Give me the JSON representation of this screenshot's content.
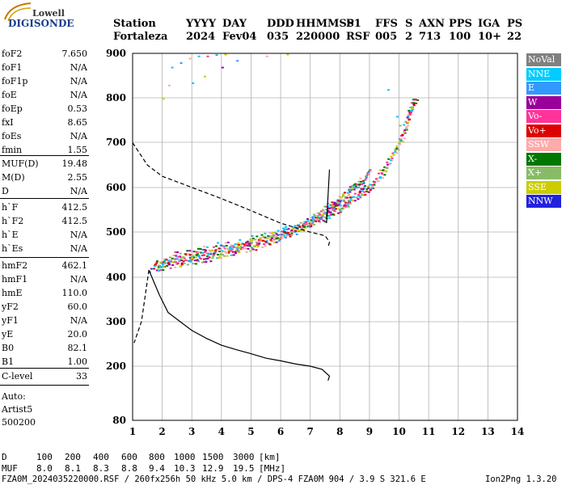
{
  "logo": {
    "line1": "Lowell",
    "line2": "DIGISONDE"
  },
  "header": {
    "labels": [
      "Station",
      "YYYY",
      "DAY",
      "DDD",
      "HHMMSS",
      "P1",
      "FFS",
      "S",
      "AXN",
      "PPS",
      "IGA",
      "PS"
    ],
    "values": [
      "Fortaleza",
      "2024",
      "Fev04",
      "035",
      "220000",
      "RSF",
      "005",
      "2",
      "713",
      "100",
      "10+",
      "22"
    ]
  },
  "params_group1": [
    {
      "k": "foF2",
      "v": "7.650"
    },
    {
      "k": "foF1",
      "v": "N/A"
    },
    {
      "k": "foF1p",
      "v": "N/A"
    },
    {
      "k": "foE",
      "v": "N/A"
    },
    {
      "k": "foEp",
      "v": "0.53"
    },
    {
      "k": "fxI",
      "v": "8.65"
    },
    {
      "k": "foEs",
      "v": "N/A"
    },
    {
      "k": "fmin",
      "v": "1.55"
    }
  ],
  "params_group2": [
    {
      "k": "MUF(D)",
      "v": "19.48"
    },
    {
      "k": "M(D)",
      "v": "2.55"
    },
    {
      "k": "D",
      "v": "N/A"
    }
  ],
  "params_group3": [
    {
      "k": "h`F",
      "v": "412.5"
    },
    {
      "k": "h`F2",
      "v": "412.5"
    },
    {
      "k": "h`E",
      "v": "N/A"
    },
    {
      "k": "h`Es",
      "v": "N/A"
    }
  ],
  "params_group4": [
    {
      "k": "hmF2",
      "v": "462.1"
    },
    {
      "k": "hmF1",
      "v": "N/A"
    },
    {
      "k": "hmE",
      "v": "110.0"
    },
    {
      "k": "yF2",
      "v": "60.0"
    },
    {
      "k": "yF1",
      "v": "N/A"
    },
    {
      "k": "yE",
      "v": "20.0"
    },
    {
      "k": "B0",
      "v": "82.1"
    },
    {
      "k": "B1",
      "v": "1.00"
    }
  ],
  "clevel": {
    "k": "C-level",
    "v": "33"
  },
  "auto": {
    "line1": "Auto:",
    "line2": "Artist5",
    "line3": "500200"
  },
  "legend": [
    {
      "label": "NoVal",
      "color": "#808080"
    },
    {
      "label": "NNE",
      "color": "#00ccff"
    },
    {
      "label": "E",
      "color": "#3399ff"
    },
    {
      "label": "W",
      "color": "#990099"
    },
    {
      "label": "Vo-",
      "color": "#ff3399"
    },
    {
      "label": "Vo+",
      "color": "#dd0000"
    },
    {
      "label": "SSW",
      "color": "#ffaaaa"
    },
    {
      "label": "X-",
      "color": "#007700"
    },
    {
      "label": "X+",
      "color": "#88bb66"
    },
    {
      "label": "SSE",
      "color": "#cccc00"
    },
    {
      "label": "NNW",
      "color": "#2222dd"
    }
  ],
  "footer": {
    "row1_label": "D",
    "row1_values": [
      "100",
      "200",
      "400",
      "600",
      "800",
      "1000",
      "1500",
      "3000",
      "[km]"
    ],
    "row2_label": "MUF",
    "row2_values": [
      "8.0",
      "8.1",
      "8.3",
      "8.8",
      "9.4",
      "10.3",
      "12.9",
      "19.5",
      "[MHz]"
    ],
    "info_line": "FZA0M_2024035220000.RSF / 260fx256h 50 kHz 5.0 km / DPS-4 FZA0M 904 / 3.9 S 321.6 E",
    "version": "Ion2Png 1.3.20"
  },
  "chart_data": {
    "type": "scatter",
    "xlim": [
      1,
      14
    ],
    "ylim": [
      80,
      900
    ],
    "x_ticks": [
      1,
      2,
      3,
      4,
      5,
      6,
      7,
      8,
      9,
      10,
      11,
      12,
      13,
      14
    ],
    "y_ticks": [
      80,
      200,
      300,
      400,
      500,
      600,
      700,
      800,
      900
    ],
    "grid": true,
    "series": [
      {
        "name": "F-trace lower",
        "points": [
          [
            1.6,
            420
          ],
          [
            2,
            425
          ],
          [
            2.5,
            432
          ],
          [
            3,
            438
          ],
          [
            3.5,
            444
          ],
          [
            4,
            452
          ],
          [
            4.5,
            460
          ],
          [
            5,
            468
          ],
          [
            5.5,
            478
          ],
          [
            6,
            490
          ],
          [
            6.5,
            505
          ],
          [
            7,
            520
          ],
          [
            7.5,
            535
          ],
          [
            8,
            555
          ],
          [
            8.5,
            575
          ],
          [
            9,
            600
          ],
          [
            9.5,
            640
          ],
          [
            10,
            700
          ],
          [
            10.3,
            760
          ],
          [
            10.5,
            800
          ]
        ]
      },
      {
        "name": "F-trace upper",
        "points": [
          [
            2,
            435
          ],
          [
            3,
            452
          ],
          [
            4,
            465
          ],
          [
            5,
            478
          ],
          [
            6,
            495
          ],
          [
            7,
            525
          ],
          [
            7.5,
            548
          ],
          [
            8,
            572
          ],
          [
            8.5,
            600
          ],
          [
            9,
            640
          ]
        ]
      },
      {
        "name": "Profile solid",
        "points": [
          [
            1.55,
            415
          ],
          [
            1.9,
            360
          ],
          [
            2.2,
            320
          ],
          [
            2.6,
            300
          ],
          [
            3,
            280
          ],
          [
            3.5,
            262
          ],
          [
            4,
            247
          ],
          [
            4.5,
            237
          ],
          [
            5,
            228
          ],
          [
            5.5,
            218
          ],
          [
            6,
            212
          ],
          [
            6.5,
            205
          ],
          [
            7,
            200
          ],
          [
            7.4,
            193
          ],
          [
            7.65,
            178
          ],
          [
            7.6,
            168
          ]
        ]
      },
      {
        "name": "Profile dashed",
        "points": [
          [
            1,
            700
          ],
          [
            1.5,
            650
          ],
          [
            2,
            625
          ],
          [
            3,
            600
          ],
          [
            4,
            575
          ],
          [
            5,
            548
          ],
          [
            6,
            520
          ],
          [
            7,
            500
          ],
          [
            7.5,
            492
          ],
          [
            7.65,
            478
          ],
          [
            7.6,
            465
          ]
        ]
      }
    ]
  }
}
